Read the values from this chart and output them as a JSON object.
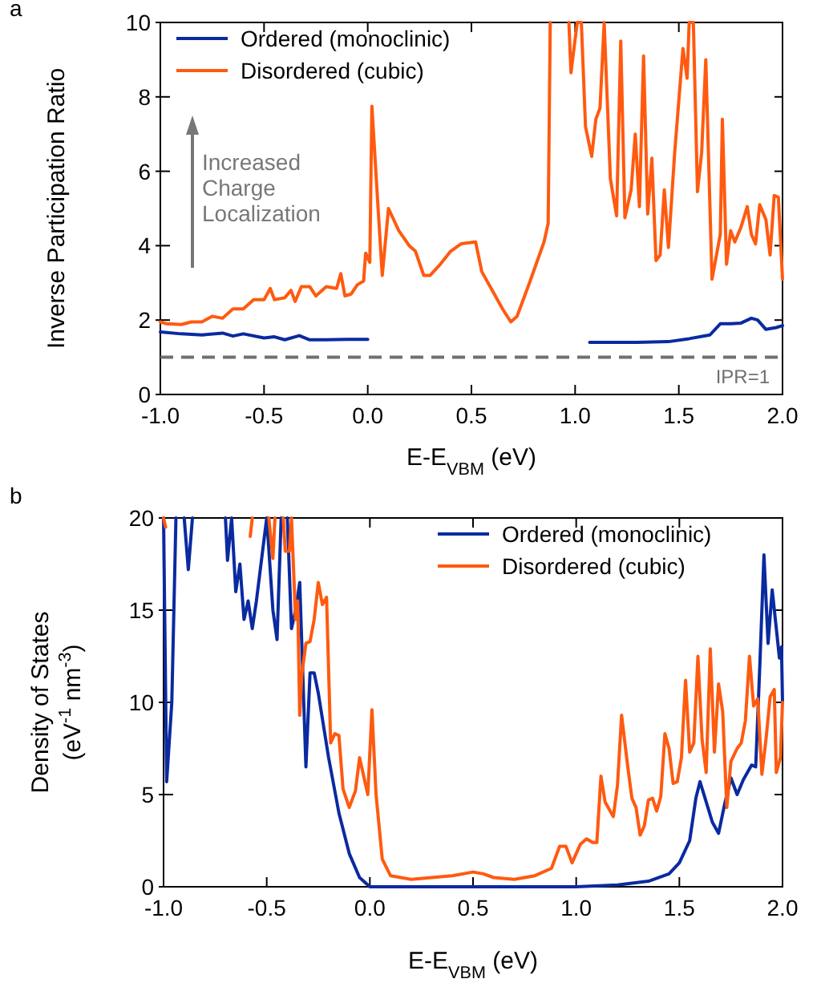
{
  "chart_data": [
    {
      "type": "line",
      "title": "a",
      "xlabel": "E-E$_{VBM}$ (eV)",
      "ylabel": "Inverse Participation Ratio",
      "xlim": [
        -1,
        2
      ],
      "xticks": [
        {
          "value": -1,
          "label": "-1.0"
        },
        {
          "value": -0.5,
          "label": "-0.5"
        },
        {
          "value": 0,
          "label": "0.0"
        },
        {
          "value": 0.5,
          "label": "0.5"
        },
        {
          "value": 1,
          "label": "1.0"
        },
        {
          "value": 1.5,
          "label": "1.5"
        },
        {
          "value": 2,
          "label": "2.0"
        }
      ],
      "ylim": [
        0,
        10
      ],
      "yticks": [
        0,
        2,
        4,
        6,
        8,
        10
      ],
      "legend": "top left",
      "grid": false,
      "line_style": "solid",
      "annotations": [
        "Increased\nCharge\nLocalization"
      ],
      "ref_lines": [
        {
          "axis": "y",
          "value": 1,
          "label": "IPR=1",
          "color": "#707070",
          "line_style": "dashed"
        }
      ],
      "series": [
        {
          "name": "Ordered (monoclinic)",
          "color": "#0a2aa0",
          "x": [
            -1.0,
            -0.9,
            -0.8,
            -0.7,
            -0.65,
            -0.6,
            -0.5,
            -0.45,
            -0.4,
            -0.33,
            -0.28,
            -0.2,
            -0.1,
            0.0,
            0.5,
            1.07,
            1.3,
            1.45,
            1.55,
            1.65,
            1.7,
            1.75,
            1.8,
            1.85,
            1.88,
            1.92,
            1.97,
            2.0
          ],
          "values": [
            1.68,
            1.63,
            1.6,
            1.65,
            1.57,
            1.63,
            1.52,
            1.55,
            1.47,
            1.58,
            1.47,
            1.47,
            1.48,
            1.48,
            null,
            1.4,
            1.4,
            1.42,
            1.5,
            1.6,
            1.9,
            1.9,
            1.92,
            2.05,
            2.0,
            1.75,
            1.8,
            1.85
          ]
        },
        {
          "name": "Disordered (cubic)",
          "color": "#ff5a10",
          "x": [
            -1.0,
            -0.97,
            -0.9,
            -0.85,
            -0.8,
            -0.75,
            -0.7,
            -0.65,
            -0.6,
            -0.55,
            -0.5,
            -0.47,
            -0.45,
            -0.4,
            -0.37,
            -0.35,
            -0.32,
            -0.28,
            -0.25,
            -0.2,
            -0.15,
            -0.13,
            -0.11,
            -0.08,
            -0.05,
            -0.02,
            -0.01,
            0.01,
            0.02,
            0.05,
            0.07,
            0.1,
            0.15,
            0.2,
            0.23,
            0.27,
            0.3,
            0.35,
            0.4,
            0.45,
            0.52,
            0.55,
            0.6,
            0.65,
            0.69,
            0.72,
            0.78,
            0.85,
            0.87,
            0.88,
            0.93,
            0.97,
            0.98,
            1.01,
            1.03,
            1.05,
            1.08,
            1.1,
            1.12,
            1.14,
            1.17,
            1.2,
            1.22,
            1.24,
            1.27,
            1.29,
            1.31,
            1.33,
            1.35,
            1.37,
            1.39,
            1.41,
            1.43,
            1.45,
            1.48,
            1.52,
            1.54,
            1.55,
            1.57,
            1.59,
            1.61,
            1.63,
            1.66,
            1.7,
            1.71,
            1.73,
            1.75,
            1.77,
            1.8,
            1.83,
            1.85,
            1.87,
            1.89,
            1.92,
            1.94,
            1.96,
            1.98,
            2.0
          ],
          "values": [
            1.95,
            1.9,
            1.88,
            1.95,
            1.95,
            2.1,
            2.05,
            2.3,
            2.3,
            2.55,
            2.55,
            2.85,
            2.55,
            2.6,
            2.8,
            2.5,
            2.9,
            2.9,
            2.65,
            2.9,
            2.85,
            3.25,
            2.65,
            2.7,
            2.95,
            3.05,
            3.8,
            3.55,
            7.75,
            5.0,
            3.2,
            5.0,
            4.4,
            4.0,
            3.85,
            3.2,
            3.2,
            3.5,
            3.85,
            4.05,
            4.1,
            3.3,
            2.8,
            2.3,
            1.95,
            2.1,
            3.0,
            4.1,
            4.6,
            10,
            null,
            10,
            8.65,
            10,
            10,
            7.2,
            6.4,
            7.4,
            7.7,
            10,
            5.8,
            4.8,
            9.5,
            4.75,
            5.5,
            7.0,
            5.05,
            9.1,
            4.85,
            6.35,
            3.6,
            3.75,
            5.5,
            3.95,
            6.5,
            9.3,
            8.5,
            10,
            10,
            5.45,
            6.5,
            9.0,
            3.1,
            4.3,
            7.4,
            3.5,
            4.4,
            4.1,
            4.5,
            5.05,
            4.3,
            4.05,
            5.1,
            4.7,
            3.75,
            5.35,
            5.3,
            3.1
          ]
        }
      ]
    },
    {
      "type": "line",
      "title": "b",
      "xlabel": "E-E$_{VBM}$ (eV)",
      "ylabel": "Density of States\n(eV$^{-1}$ nm$^{-3}$)",
      "xlim": [
        -1,
        2
      ],
      "xticks": [
        {
          "value": -1,
          "label": "-1.0"
        },
        {
          "value": -0.5,
          "label": "-0.5"
        },
        {
          "value": 0,
          "label": "0.0"
        },
        {
          "value": 0.5,
          "label": "0.5"
        },
        {
          "value": 1,
          "label": "1.0"
        },
        {
          "value": 1.5,
          "label": "1.5"
        },
        {
          "value": 2,
          "label": "2.0"
        }
      ],
      "ylim": [
        0,
        20
      ],
      "yticks": [
        0,
        5,
        10,
        15,
        20
      ],
      "legend": "top right",
      "grid": false,
      "line_style": "solid",
      "series": [
        {
          "name": "Ordered (monoclinic)",
          "color": "#0a2aa0",
          "x": [
            -1.0,
            -0.985,
            -0.96,
            -0.94,
            -0.92,
            -0.9,
            -0.88,
            -0.86,
            -0.78,
            -0.7,
            -0.69,
            -0.67,
            -0.65,
            -0.63,
            -0.61,
            -0.59,
            -0.57,
            -0.55,
            -0.5,
            -0.47,
            -0.45,
            -0.43,
            -0.41,
            -0.4,
            -0.38,
            -0.36,
            -0.34,
            -0.31,
            -0.29,
            -0.27,
            -0.25,
            -0.2,
            -0.15,
            -0.1,
            -0.05,
            0.0,
            0.5,
            1.0,
            1.2,
            1.35,
            1.45,
            1.5,
            1.55,
            1.58,
            1.6,
            1.63,
            1.66,
            1.69,
            1.72,
            1.75,
            1.78,
            1.81,
            1.85,
            1.87,
            1.89,
            1.91,
            1.93,
            1.95,
            1.97,
            1.985,
            1.995,
            2.0
          ],
          "values": [
            20,
            5.7,
            10,
            20,
            null,
            20,
            17.2,
            20,
            null,
            20,
            17.7,
            20,
            16,
            17.5,
            14.5,
            15.5,
            14,
            15.5,
            20,
            15,
            13.4,
            20,
            null,
            20,
            14,
            15,
            16.5,
            6.5,
            11.6,
            11.6,
            10.5,
            7,
            4,
            1.8,
            0.5,
            0,
            0,
            0,
            0.1,
            0.3,
            0.7,
            1.3,
            2.5,
            4.8,
            5.7,
            4.6,
            3.5,
            2.9,
            4.5,
            5.9,
            5.0,
            5.8,
            6.6,
            6.5,
            12,
            18,
            13.2,
            16.1,
            14,
            12.4,
            13,
            10
          ]
        },
        {
          "name": "Disordered (cubic)",
          "color": "#ff5a10",
          "x": [
            -1.0,
            -0.99,
            -0.8,
            -0.58,
            -0.57,
            -0.53,
            -0.49,
            -0.47,
            -0.46,
            -0.44,
            -0.42,
            -0.41,
            -0.39,
            -0.38,
            -0.36,
            -0.35,
            -0.34,
            -0.33,
            -0.31,
            -0.29,
            -0.27,
            -0.25,
            -0.23,
            -0.21,
            -0.19,
            -0.17,
            -0.15,
            -0.13,
            -0.1,
            -0.07,
            -0.05,
            -0.03,
            -0.01,
            0.01,
            0.03,
            0.06,
            0.1,
            0.2,
            0.3,
            0.4,
            0.5,
            0.55,
            0.6,
            0.7,
            0.8,
            0.88,
            0.92,
            0.95,
            0.98,
            1.02,
            1.05,
            1.08,
            1.1,
            1.12,
            1.14,
            1.18,
            1.2,
            1.22,
            1.25,
            1.27,
            1.29,
            1.31,
            1.33,
            1.35,
            1.37,
            1.39,
            1.41,
            1.43,
            1.45,
            1.47,
            1.49,
            1.51,
            1.53,
            1.55,
            1.57,
            1.59,
            1.61,
            1.63,
            1.65,
            1.67,
            1.69,
            1.71,
            1.73,
            1.75,
            1.78,
            1.8,
            1.82,
            1.84,
            1.86,
            1.88,
            1.9,
            1.92,
            1.94,
            1.96,
            1.97,
            1.99,
            2.0
          ],
          "values": [
            20,
            19.5,
            null,
            19,
            20,
            null,
            20,
            17.8,
            20,
            null,
            20,
            18.2,
            18.2,
            20,
            14.5,
            15.5,
            9.3,
            11.5,
            13.2,
            13.3,
            14.5,
            16.5,
            15.3,
            15.7,
            7.8,
            8.3,
            8.2,
            5.3,
            4.3,
            5.2,
            7,
            6,
            5,
            9.6,
            5,
            1.5,
            0.6,
            0.4,
            0.5,
            0.6,
            0.8,
            0.7,
            0.5,
            0.4,
            0.6,
            1.0,
            2.2,
            2.2,
            1.3,
            2.3,
            2.6,
            2.4,
            2.4,
            6,
            4.6,
            3.8,
            5.5,
            9.3,
            6.5,
            4.8,
            4.3,
            2.8,
            3.3,
            4.7,
            4.8,
            4.1,
            4.9,
            8.3,
            7.5,
            5.6,
            5.7,
            7,
            11.2,
            7.3,
            7.8,
            12.5,
            8,
            6.2,
            12.9,
            7.3,
            11,
            9.5,
            4.3,
            6.8,
            7.5,
            7.8,
            9,
            12.5,
            9.8,
            10.2,
            6.1,
            8,
            10.3,
            10.7,
            6.2,
            7,
            10
          ]
        }
      ]
    }
  ]
}
